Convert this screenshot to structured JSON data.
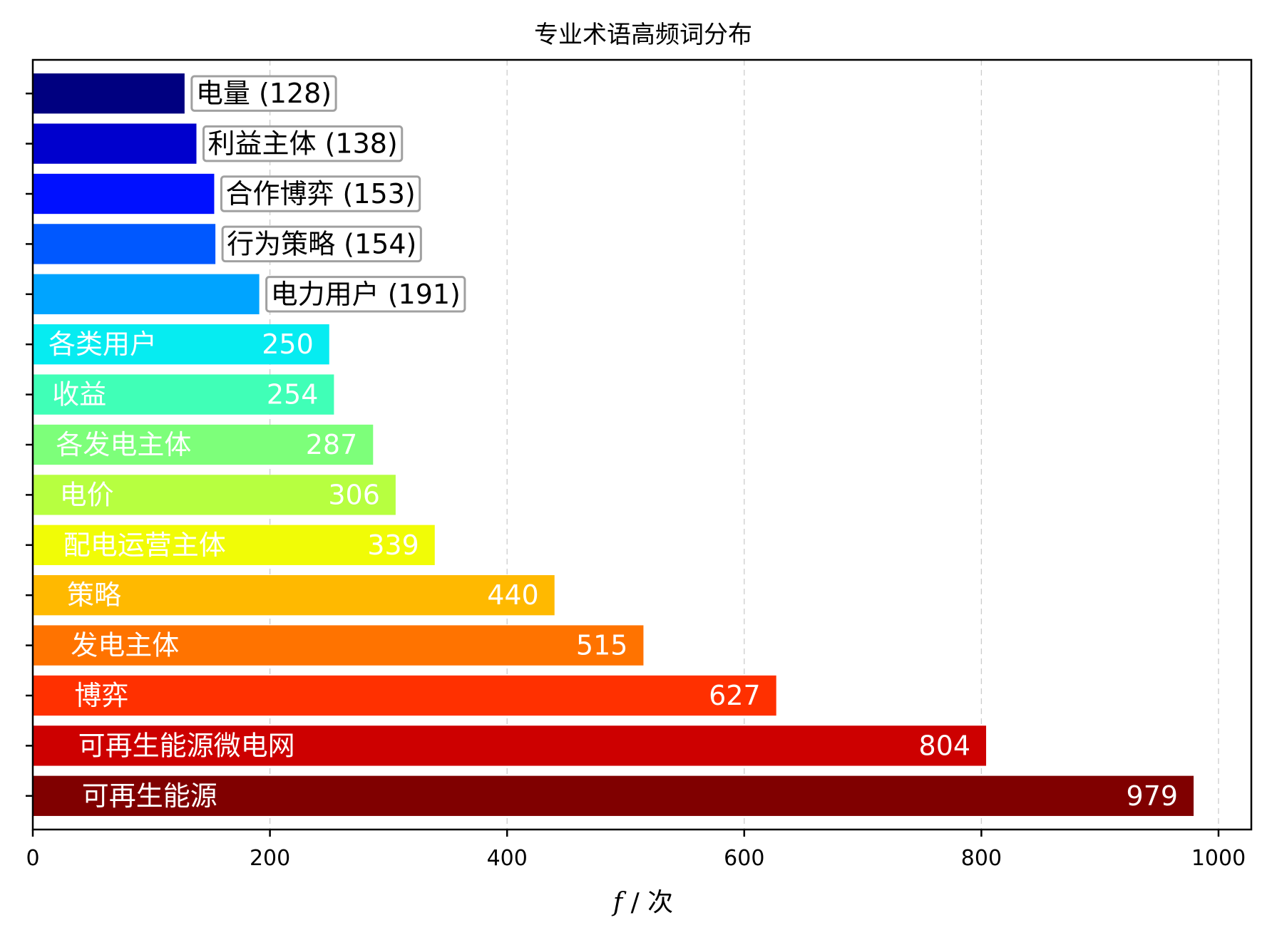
{
  "chart_data": {
    "type": "bar",
    "orientation": "horizontal",
    "title": "专业术语高频词分布",
    "xlabel": "f / 次",
    "xlabel_parts": {
      "var": "f",
      "rest": " / 次"
    },
    "xlim": [
      0,
      1030
    ],
    "xticks": [
      0,
      200,
      400,
      600,
      800,
      1000
    ],
    "grid": {
      "x": true,
      "style": "dashed"
    },
    "label_threshold": 200,
    "categories": [
      "电量",
      "利益主体",
      "合作博弈",
      "行为策略",
      "电力用户",
      "各类用户",
      "收益",
      "各发电主体",
      "电价",
      "配电运营主体",
      "策略",
      "发电主体",
      "博弈",
      "可再生能源微电网",
      "可再生能源"
    ],
    "values": [
      128,
      138,
      153,
      154,
      191,
      250,
      254,
      287,
      306,
      339,
      440,
      515,
      627,
      804,
      979
    ],
    "outside_labels": [
      "电量 (128)",
      "利益主体 (138)",
      "合作博弈 (153)",
      "行为策略 (154)",
      "电力用户 (191)"
    ],
    "colors": [
      "#000080",
      "#0000cd",
      "#0010ff",
      "#0058ff",
      "#00a4ff",
      "#06ecf1",
      "#40ffb7",
      "#7dff7a",
      "#b7ff40",
      "#f1fc06",
      "#ffb900",
      "#ff7300",
      "#ff3000",
      "#cd0000",
      "#800000"
    ]
  }
}
